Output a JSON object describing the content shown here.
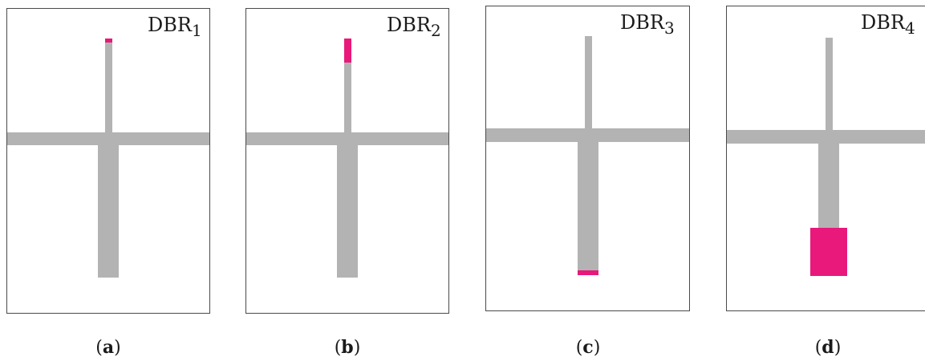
{
  "colors": {
    "line": "#b3b3b3",
    "highlight": "#e8197a",
    "border": "#4a4a4a"
  },
  "panels": [
    {
      "label_main": "DBR",
      "label_sub": "1",
      "caption_letter": "a"
    },
    {
      "label_main": "DBR",
      "label_sub": "2",
      "caption_letter": "b"
    },
    {
      "label_main": "DBR",
      "label_sub": "3",
      "caption_letter": "c"
    },
    {
      "label_main": "DBR",
      "label_sub": "4",
      "caption_letter": "d"
    }
  ]
}
